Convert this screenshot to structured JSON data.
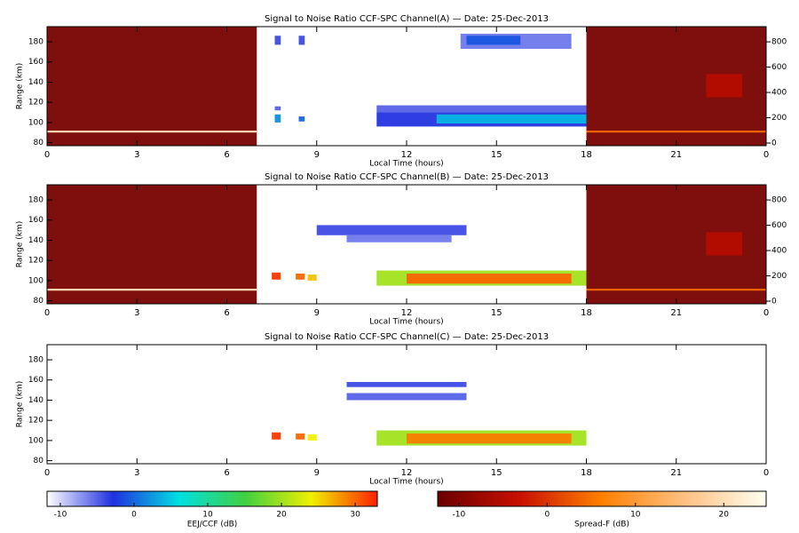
{
  "chart_data": [
    {
      "type": "heatmap",
      "title": "Signal to Noise Ratio CCF-SPC Channel(A) — Date: 25-Dec-2013",
      "xlabel": "Local Time (hours)",
      "ylabel": "Range (km)",
      "xlim": [
        0,
        24
      ],
      "xticks": [
        0,
        3,
        6,
        9,
        12,
        15,
        18,
        21,
        {
          "value": 24,
          "label": "0"
        }
      ],
      "ylim": [
        77,
        195
      ],
      "yticks": [
        80,
        100,
        120,
        140,
        160,
        180
      ],
      "y2lim": [
        -21,
        920
      ],
      "y2ticks": [
        0,
        200,
        400,
        600,
        800
      ],
      "cells": [
        {
          "x": [
            0,
            7
          ],
          "y": [
            77,
            195
          ],
          "value": -11,
          "map": 1
        },
        {
          "x": [
            18,
            24
          ],
          "y": [
            77,
            195
          ],
          "value": -11,
          "map": 1
        },
        {
          "x": [
            0,
            7
          ],
          "y": [
            90,
            92
          ],
          "value": 20,
          "map": 1
        },
        {
          "x": [
            18,
            24
          ],
          "y": [
            90,
            92
          ],
          "value": 4,
          "map": 1
        },
        {
          "x": [
            22,
            23.2
          ],
          "y": [
            125,
            148
          ],
          "value": -5,
          "map": 1
        },
        {
          "x": [
            7.6,
            7.8
          ],
          "y": [
            100,
            108
          ],
          "value": 2,
          "map": 0
        },
        {
          "x": [
            7.6,
            7.8
          ],
          "y": [
            112,
            116
          ],
          "value": -5,
          "map": 0
        },
        {
          "x": [
            8.4,
            8.6
          ],
          "y": [
            101,
            106
          ],
          "value": 0,
          "map": 0
        },
        {
          "x": [
            7.6,
            7.8
          ],
          "y": [
            177,
            186
          ],
          "value": -4,
          "map": 0
        },
        {
          "x": [
            8.4,
            8.6
          ],
          "y": [
            177,
            186
          ],
          "value": -4,
          "map": 0
        },
        {
          "x": [
            11,
            18
          ],
          "y": [
            110,
            117
          ],
          "value": -5,
          "map": 0
        },
        {
          "x": [
            11,
            18
          ],
          "y": [
            96,
            110
          ],
          "value": -3,
          "map": 0
        },
        {
          "x": [
            13,
            18
          ],
          "y": [
            99,
            108
          ],
          "value": 4,
          "map": 0
        },
        {
          "x": [
            13.8,
            17.5
          ],
          "y": [
            173,
            188
          ],
          "value": -6,
          "map": 0
        },
        {
          "x": [
            14,
            15.8
          ],
          "y": [
            177,
            186
          ],
          "value": -1,
          "map": 0
        }
      ]
    },
    {
      "type": "heatmap",
      "title": "Signal to Noise Ratio CCF-SPC Channel(B) — Date: 25-Dec-2013",
      "xlabel": "Local Time (hours)",
      "ylabel": "Range (km)",
      "xlim": [
        0,
        24
      ],
      "xticks": [
        0,
        3,
        6,
        9,
        12,
        15,
        18,
        21,
        {
          "value": 24,
          "label": "0"
        }
      ],
      "ylim": [
        77,
        195
      ],
      "yticks": [
        80,
        100,
        120,
        140,
        160,
        180
      ],
      "y2lim": [
        -21,
        920
      ],
      "y2ticks": [
        0,
        200,
        400,
        600,
        800
      ],
      "cells": [
        {
          "x": [
            0,
            7
          ],
          "y": [
            77,
            195
          ],
          "value": -11,
          "map": 1
        },
        {
          "x": [
            18,
            24
          ],
          "y": [
            77,
            195
          ],
          "value": -11,
          "map": 1
        },
        {
          "x": [
            0,
            7
          ],
          "y": [
            90,
            92
          ],
          "value": 20,
          "map": 1
        },
        {
          "x": [
            18,
            24
          ],
          "y": [
            90,
            92
          ],
          "value": 4,
          "map": 1
        },
        {
          "x": [
            22,
            23.2
          ],
          "y": [
            125,
            148
          ],
          "value": -5,
          "map": 1
        },
        {
          "x": [
            7.5,
            7.8
          ],
          "y": [
            101,
            108
          ],
          "value": 32,
          "map": 0
        },
        {
          "x": [
            8.3,
            8.6
          ],
          "y": [
            101,
            107
          ],
          "value": 30,
          "map": 0
        },
        {
          "x": [
            8.7,
            9.0
          ],
          "y": [
            100,
            106
          ],
          "value": 26,
          "map": 0
        },
        {
          "x": [
            11,
            18
          ],
          "y": [
            95,
            110
          ],
          "value": 20,
          "map": 0
        },
        {
          "x": [
            12,
            17.5
          ],
          "y": [
            97,
            107
          ],
          "value": 30,
          "map": 0
        },
        {
          "x": [
            9,
            14
          ],
          "y": [
            145,
            155
          ],
          "value": -4,
          "map": 0
        },
        {
          "x": [
            10,
            13.5
          ],
          "y": [
            138,
            145
          ],
          "value": -6,
          "map": 0
        }
      ]
    },
    {
      "type": "heatmap",
      "title": "Signal to Noise Ratio CCF-SPC Channel(C) — Date: 25-Dec-2013",
      "xlabel": "Local Time (hours)",
      "ylabel": "Range (km)",
      "xlim": [
        0,
        24
      ],
      "xticks": [
        0,
        3,
        6,
        9,
        12,
        15,
        18,
        21,
        {
          "value": 24,
          "label": "0"
        }
      ],
      "ylim": [
        77,
        195
      ],
      "yticks": [
        80,
        100,
        120,
        140,
        160,
        180
      ],
      "cells": [
        {
          "x": [
            7.5,
            7.8
          ],
          "y": [
            101,
            108
          ],
          "value": 32,
          "map": 0
        },
        {
          "x": [
            8.3,
            8.6
          ],
          "y": [
            101,
            107
          ],
          "value": 30,
          "map": 0
        },
        {
          "x": [
            8.7,
            9.0
          ],
          "y": [
            100,
            106
          ],
          "value": 24,
          "map": 0
        },
        {
          "x": [
            11,
            18
          ],
          "y": [
            95,
            110
          ],
          "value": 20,
          "map": 0
        },
        {
          "x": [
            12,
            17.5
          ],
          "y": [
            97,
            107
          ],
          "value": 29,
          "map": 0
        },
        {
          "x": [
            10,
            14
          ],
          "y": [
            153,
            158
          ],
          "value": -4,
          "map": 0
        },
        {
          "x": [
            10,
            14
          ],
          "y": [
            140,
            147
          ],
          "value": -5,
          "map": 0
        }
      ]
    }
  ],
  "colorbars": [
    {
      "label": "EEJ/CCF (dB)",
      "lim": [
        -11.8,
        33
      ],
      "ticks": [
        -10,
        0,
        10,
        20,
        30
      ],
      "colors": [
        "#ffffff",
        "#2030e0",
        "#00e0e0",
        "#40d040",
        "#f0f000",
        "#ff2000"
      ]
    },
    {
      "label": "Spread-F (dB)",
      "lim": [
        -12.4,
        24.8
      ],
      "ticks": [
        -10,
        0,
        10,
        20
      ],
      "colors": [
        "#6a0000",
        "#c81000",
        "#ff8000",
        "#ffc080",
        "#fffff0"
      ]
    }
  ]
}
